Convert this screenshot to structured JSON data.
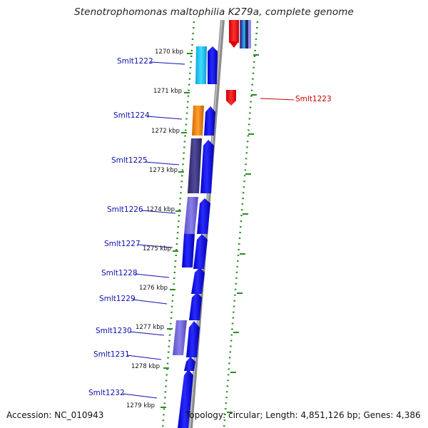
{
  "title": "Stenotrophomonas maltophilia K279a, complete genome",
  "accession": "Accession: NC_010943",
  "summary": "Topology: circular; Length: 4,851,126 bp; Genes: 4,386",
  "ticks": [
    "1270 kbp",
    "1271 kbp",
    "1272 kbp",
    "1273 kbp",
    "1274 kbp",
    "1275 kbp",
    "1276 kbp",
    "1277 kbp",
    "1278 kbp",
    "1279 kbp"
  ],
  "genes": [
    "Smlt1222",
    "Smlt1223",
    "Smlt1224",
    "Smlt1225",
    "Smlt1226",
    "Smlt1227",
    "Smlt1228",
    "Smlt1229",
    "Smlt1230",
    "Smlt1231",
    "Smlt1232"
  ],
  "colors": {
    "forward": "#0000ee",
    "reverse": "#ee0000",
    "backbone": "#8c8c8c",
    "tick": "#2a8a2a",
    "label": "#1010b0"
  }
}
